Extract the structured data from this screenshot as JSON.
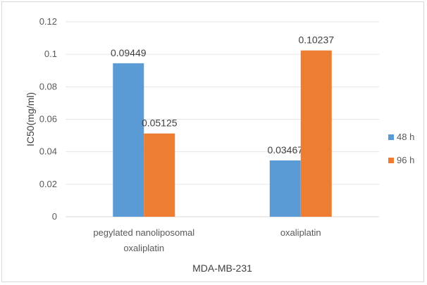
{
  "chart_data": {
    "type": "bar",
    "categories": [
      [
        "pegylated nanoliposomal",
        "oxaliplatin"
      ],
      [
        "oxaliplatin"
      ]
    ],
    "series": [
      {
        "name": "48 h",
        "values": [
          0.09449,
          0.03467
        ],
        "labels": [
          "0.09449",
          "0.03467"
        ],
        "color": "#5b9bd5"
      },
      {
        "name": "96 h",
        "values": [
          0.05125,
          0.10237
        ],
        "labels": [
          "0.05125",
          "0.10237"
        ],
        "color": "#ed7d31"
      }
    ],
    "y_ticks": [
      "0",
      "0.02",
      "0.04",
      "0.06",
      "0.08",
      "0.1",
      "0.12"
    ],
    "ylim": [
      0,
      0.12
    ],
    "ylabel": "IC50(mg/ml)",
    "xlabel": "MDA-MB-231",
    "grid": true,
    "legend_position": "right"
  }
}
